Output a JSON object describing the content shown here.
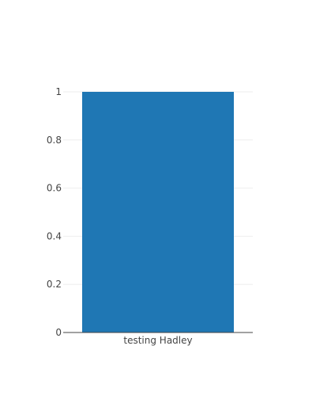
{
  "chart_data": {
    "type": "bar",
    "categories": [
      "testing Hadley"
    ],
    "values": [
      1
    ],
    "ylim": [
      0,
      1
    ],
    "yticks": [
      0,
      0.2,
      0.4,
      0.6,
      0.8,
      1
    ],
    "ytick_labels": [
      "0",
      "0.2",
      "0.4",
      "0.6",
      "0.8",
      "1"
    ],
    "grid": true,
    "bar_color": "#1f77b4",
    "title": "",
    "xlabel": "",
    "ylabel": ""
  },
  "colors": {
    "background": "#ffffff",
    "grid": "#eeeeee",
    "axis_line": "#444444",
    "tick_text": "#444444"
  }
}
